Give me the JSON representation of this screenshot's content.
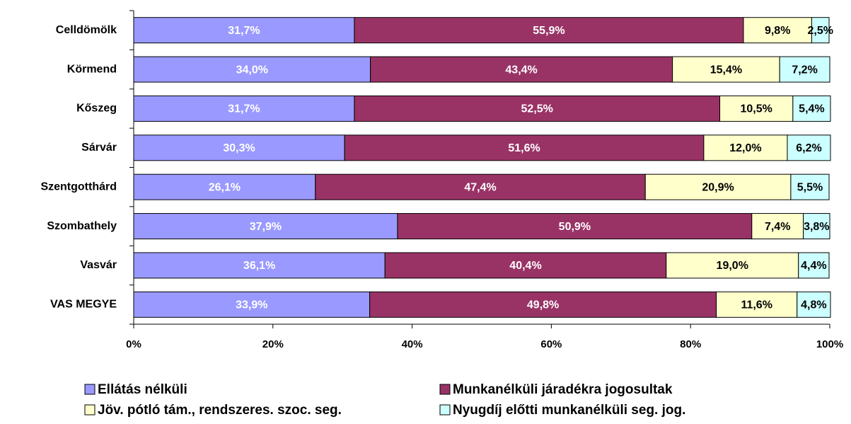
{
  "chart_data": {
    "type": "stacked_barh",
    "categories": [
      "Celldömölk",
      "Körmend",
      "Kőszeg",
      "Sárvár",
      "Szentgotthárd",
      "Szombathely",
      "Vasvár",
      "VAS MEGYE"
    ],
    "series": [
      {
        "name": "Ellátás nélküli",
        "color": "#9999ff",
        "values": [
          31.7,
          34.0,
          31.7,
          30.3,
          26.1,
          37.9,
          36.1,
          33.9
        ],
        "value_labels": [
          "31,7%",
          "34,0%",
          "31,7%",
          "30,3%",
          "26,1%",
          "37,9%",
          "36,1%",
          "33,9%"
        ]
      },
      {
        "name": "Munkanélküli járadékra jogosultak",
        "color": "#993366",
        "values": [
          55.9,
          43.4,
          52.5,
          51.6,
          47.4,
          50.9,
          40.4,
          49.8
        ],
        "value_labels": [
          "55,9%",
          "43,4%",
          "52,5%",
          "51,6%",
          "47,4%",
          "50,9%",
          "40,4%",
          "49,8%"
        ]
      },
      {
        "name": "Jöv. pótló tám., rendszeres. szoc. seg.",
        "color": "#ffffcc",
        "values": [
          9.8,
          15.4,
          10.5,
          12.0,
          20.9,
          7.4,
          19.0,
          11.6
        ],
        "value_labels": [
          "9,8%",
          "15,4%",
          "10,5%",
          "12,0%",
          "20,9%",
          "7,4%",
          "19,0%",
          "11,6%"
        ]
      },
      {
        "name": "Nyugdíj előtti munkanélküli seg. jog.",
        "color": "#ccffff",
        "values": [
          2.5,
          7.2,
          5.4,
          6.2,
          5.5,
          3.8,
          4.4,
          4.8
        ],
        "value_labels": [
          "2,5%",
          "7,2%",
          "5,4%",
          "6,2%",
          "5,5%",
          "3,8%",
          "4,4%",
          "4,8%"
        ]
      }
    ],
    "xlim": [
      0,
      100
    ],
    "xticks": [
      {
        "value": 0,
        "label": "0%"
      },
      {
        "value": 20,
        "label": "20%"
      },
      {
        "value": 40,
        "label": "40%"
      },
      {
        "value": 60,
        "label": "60%"
      },
      {
        "value": 80,
        "label": "80%"
      },
      {
        "value": 100,
        "label": "100%"
      }
    ]
  }
}
